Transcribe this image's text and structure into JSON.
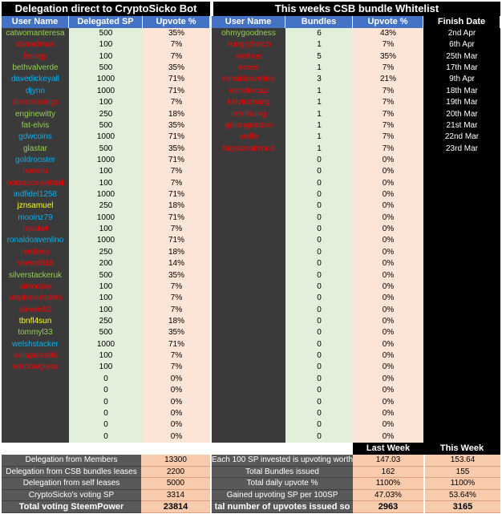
{
  "titles": {
    "left": "Delegation direct to CryptoSicko Bot",
    "right": "This weeks CSB bundle Whitelist"
  },
  "headers": {
    "user_name": "User Name",
    "delegated_sp": "Delegated SP",
    "upvote_pct": "Upvote %",
    "user_name2": "User Name",
    "bundles": "Bundles",
    "upvote_pct2": "Upvote %",
    "finish_date": "Finish Date"
  },
  "colors": {
    "green": "#92d050",
    "red": "#ff0000",
    "blue": "#00b0f0",
    "yellow": "#ffff00",
    "header_blue": "#4472c4",
    "dark": "#3a3a3a"
  },
  "delegators": [
    {
      "name": "catwomanteresa",
      "sp": "500",
      "pct": "35%",
      "color": "green"
    },
    {
      "name": "abandiman",
      "sp": "100",
      "pct": "7%",
      "color": "red"
    },
    {
      "name": "beingy",
      "sp": "100",
      "pct": "7%",
      "color": "red"
    },
    {
      "name": "bethvalverde",
      "sp": "500",
      "pct": "35%",
      "color": "green"
    },
    {
      "name": "davedickeyall",
      "sp": "1000",
      "pct": "71%",
      "color": "blue"
    },
    {
      "name": "djynn",
      "sp": "1000",
      "pct": "71%",
      "color": "blue"
    },
    {
      "name": "dimenionsigs",
      "sp": "100",
      "pct": "7%",
      "color": "red"
    },
    {
      "name": "enginewitty",
      "sp": "250",
      "pct": "18%",
      "color": "green"
    },
    {
      "name": "fat-elvis",
      "sp": "500",
      "pct": "35%",
      "color": "green"
    },
    {
      "name": "gdwcoins",
      "sp": "1000",
      "pct": "71%",
      "color": "blue"
    },
    {
      "name": "glastar",
      "sp": "500",
      "pct": "35%",
      "color": "green"
    },
    {
      "name": "goldrooster",
      "sp": "1000",
      "pct": "71%",
      "color": "blue"
    },
    {
      "name": "honoru",
      "sp": "100",
      "pct": "7%",
      "color": "red"
    },
    {
      "name": "hotsaucewehtail",
      "sp": "100",
      "pct": "7%",
      "color": "red"
    },
    {
      "name": "indfidel1258",
      "sp": "1000",
      "pct": "71%",
      "color": "blue"
    },
    {
      "name": "jznsamuel",
      "sp": "250",
      "pct": "18%",
      "color": "yellow"
    },
    {
      "name": "mooinz79",
      "sp": "1000",
      "pct": "71%",
      "color": "blue"
    },
    {
      "name": "mostwi",
      "sp": "100",
      "pct": "7%",
      "color": "red"
    },
    {
      "name": "ronaldoavenlino",
      "sp": "1000",
      "pct": "71%",
      "color": "blue"
    },
    {
      "name": "rentless",
      "sp": "250",
      "pct": "18%",
      "color": "red"
    },
    {
      "name": "shevol518",
      "sp": "200",
      "pct": "14%",
      "color": "red"
    },
    {
      "name": "silverstackeruk",
      "sp": "500",
      "pct": "35%",
      "color": "green"
    },
    {
      "name": "simonjay",
      "sp": "100",
      "pct": "7%",
      "color": "red"
    },
    {
      "name": "stephen-rodets",
      "sp": "100",
      "pct": "7%",
      "color": "red"
    },
    {
      "name": "steven52",
      "sp": "100",
      "pct": "7%",
      "color": "red"
    },
    {
      "name": "tbnfl4sun",
      "sp": "250",
      "pct": "18%",
      "color": "yellow"
    },
    {
      "name": "tommyl33",
      "sp": "500",
      "pct": "35%",
      "color": "green"
    },
    {
      "name": "welshstacker",
      "sp": "1000",
      "pct": "71%",
      "color": "blue"
    },
    {
      "name": "willsparks88",
      "sp": "100",
      "pct": "7%",
      "color": "red"
    },
    {
      "name": "windowglass",
      "sp": "100",
      "pct": "7%",
      "color": "red"
    },
    {
      "name": "",
      "sp": "0",
      "pct": "0%",
      "color": "white"
    },
    {
      "name": "",
      "sp": "0",
      "pct": "0%",
      "color": "white"
    },
    {
      "name": "",
      "sp": "0",
      "pct": "0%",
      "color": "white"
    },
    {
      "name": "",
      "sp": "0",
      "pct": "0%",
      "color": "white"
    },
    {
      "name": "",
      "sp": "0",
      "pct": "0%",
      "color": "white"
    },
    {
      "name": "",
      "sp": "0",
      "pct": "0%",
      "color": "white"
    }
  ],
  "whitelist": [
    {
      "name": "ohmygoodness",
      "bundles": "6",
      "pct": "43%",
      "date": "2nd Apr",
      "color": "green"
    },
    {
      "name": "hungryhatch",
      "bundles": "1",
      "pct": "7%",
      "date": "6th Apr",
      "color": "red"
    },
    {
      "name": "methus",
      "bundles": "5",
      "pct": "35%",
      "date": "25th Mar",
      "color": "red"
    },
    {
      "name": "eroes",
      "bundles": "1",
      "pct": "7%",
      "date": "17th Mar",
      "color": "red"
    },
    {
      "name": "ronaldoavelino",
      "bundles": "3",
      "pct": "21%",
      "date": "9th Apr",
      "color": "red"
    },
    {
      "name": "wondercap",
      "bundles": "1",
      "pct": "7%",
      "date": "18th Mar",
      "color": "red"
    },
    {
      "name": "kelvinzhang",
      "bundles": "1",
      "pct": "7%",
      "date": "19th Mar",
      "color": "red"
    },
    {
      "name": "lemillwing",
      "bundles": "1",
      "pct": "7%",
      "date": "20th Mar",
      "color": "red"
    },
    {
      "name": "gilliangeatore",
      "bundles": "1",
      "pct": "7%",
      "date": "21st Mar",
      "color": "red"
    },
    {
      "name": "seilfe",
      "bundles": "1",
      "pct": "7%",
      "date": "22nd Mar",
      "color": "red"
    },
    {
      "name": "faiyazmahmud",
      "bundles": "1",
      "pct": "7%",
      "date": "23rd Mar",
      "color": "red"
    }
  ],
  "whitelist_empty": {
    "bundles": "0",
    "pct": "0%"
  },
  "summary_left": [
    {
      "label": "Delegation from Members",
      "value": "13300"
    },
    {
      "label": "Delegation from CSB bundles leases",
      "value": "2200"
    },
    {
      "label": "Delegation from self leases",
      "value": "5000"
    },
    {
      "label": "CryptoSicko's voting SP",
      "value": "3314"
    },
    {
      "label": "Total voting SteemPower",
      "value": "23814"
    }
  ],
  "summary_right_headers": {
    "last_week": "Last Week",
    "this_week": "This Week"
  },
  "summary_right": [
    {
      "label": "Each 100 SP invested is upvoting worth",
      "last": "147.03",
      "this": "153.64"
    },
    {
      "label": "Total Bundles issued",
      "last": "162",
      "this": "155"
    },
    {
      "label": "Total daily upvote %",
      "last": "1100%",
      "this": "1100%"
    },
    {
      "label": "Gained upvoting SP per 100SP",
      "last": "47.03%",
      "this": "53.64%"
    },
    {
      "label": "tal number of upvotes issued so",
      "last": "2963",
      "this": "3165"
    }
  ]
}
